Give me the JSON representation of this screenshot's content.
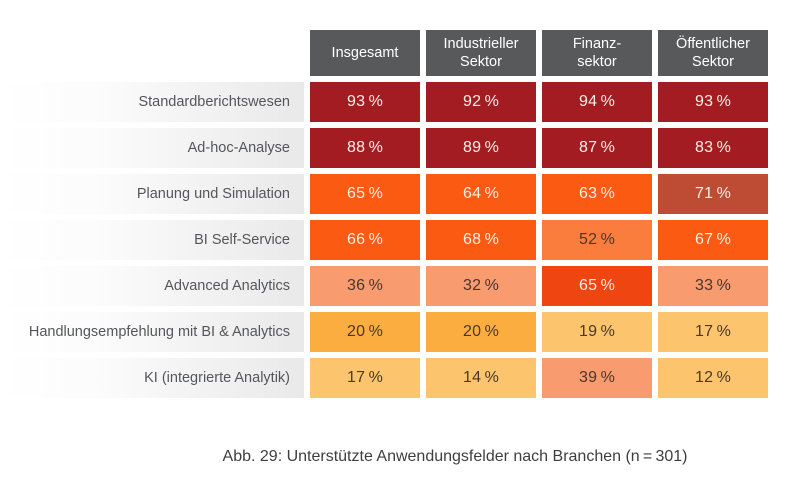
{
  "palette": {
    "header_bg": "#58595B",
    "header_fg": "#FFFFFF",
    "label_fg": "#55565A",
    "caption_fg": "#3E3E40",
    "light_text": "#FAF0E6",
    "dark_text": "#4A372B",
    "darkRed": "#A31C22",
    "brickRed": "#BE4B33",
    "orange": "#FA5A12",
    "deepOrange": "#EE4511",
    "lightOrange": "#FA7D3E",
    "salmon": "#F89B6F",
    "amber": "#FBAE3F",
    "lightAmber": "#FCC46C"
  },
  "table": {
    "columns": [
      {
        "label": "Insgesamt"
      },
      {
        "label": "Industrieller\nSektor"
      },
      {
        "label": "Finanz-\nsektor"
      },
      {
        "label": "Öffentlicher\nSektor"
      }
    ],
    "rows": [
      {
        "label": "Standardberichtswesen",
        "cells": [
          {
            "text": "93 %",
            "color": "darkRed",
            "text_color": "light"
          },
          {
            "text": "92 %",
            "color": "darkRed",
            "text_color": "light"
          },
          {
            "text": "94 %",
            "color": "darkRed",
            "text_color": "light"
          },
          {
            "text": "93 %",
            "color": "darkRed",
            "text_color": "light"
          }
        ]
      },
      {
        "label": "Ad-hoc-Analyse",
        "cells": [
          {
            "text": "88 %",
            "color": "darkRed",
            "text_color": "light"
          },
          {
            "text": "89 %",
            "color": "darkRed",
            "text_color": "light"
          },
          {
            "text": "87 %",
            "color": "darkRed",
            "text_color": "light"
          },
          {
            "text": "83 %",
            "color": "darkRed",
            "text_color": "light"
          }
        ]
      },
      {
        "label": "Planung und Simulation",
        "cells": [
          {
            "text": "65 %",
            "color": "orange",
            "text_color": "light"
          },
          {
            "text": "64 %",
            "color": "orange",
            "text_color": "light"
          },
          {
            "text": "63 %",
            "color": "orange",
            "text_color": "light"
          },
          {
            "text": "71 %",
            "color": "brickRed",
            "text_color": "light"
          }
        ]
      },
      {
        "label": "BI Self-Service",
        "cells": [
          {
            "text": "66 %",
            "color": "orange",
            "text_color": "light"
          },
          {
            "text": "68 %",
            "color": "orange",
            "text_color": "light"
          },
          {
            "text": "52 %",
            "color": "lightOrange",
            "text_color": "dark"
          },
          {
            "text": "67 %",
            "color": "orange",
            "text_color": "light"
          }
        ]
      },
      {
        "label": "Advanced Analytics",
        "cells": [
          {
            "text": "36 %",
            "color": "salmon",
            "text_color": "dark"
          },
          {
            "text": "32 %",
            "color": "salmon",
            "text_color": "dark"
          },
          {
            "text": "65 %",
            "color": "deepOrange",
            "text_color": "light"
          },
          {
            "text": "33 %",
            "color": "salmon",
            "text_color": "dark"
          }
        ]
      },
      {
        "label": "Handlungsempfehlung mit BI & Analytics",
        "cells": [
          {
            "text": "20 %",
            "color": "amber",
            "text_color": "dark"
          },
          {
            "text": "20 %",
            "color": "amber",
            "text_color": "dark"
          },
          {
            "text": "19 %",
            "color": "lightAmber",
            "text_color": "dark"
          },
          {
            "text": "17 %",
            "color": "lightAmber",
            "text_color": "dark"
          }
        ]
      },
      {
        "label": "KI (integrierte Analytik)",
        "cells": [
          {
            "text": "17 %",
            "color": "lightAmber",
            "text_color": "dark"
          },
          {
            "text": "14 %",
            "color": "lightAmber",
            "text_color": "dark"
          },
          {
            "text": "39 %",
            "color": "salmon",
            "text_color": "dark"
          },
          {
            "text": "12 %",
            "color": "lightAmber",
            "text_color": "dark"
          }
        ]
      }
    ]
  },
  "caption": "Abb. 29: Unterstützte Anwendungsfelder nach Branchen (n = 301)",
  "chart_data": {
    "type": "heatmap",
    "title": "Abb. 29: Unterstützte Anwendungsfelder nach Branchen (n=301)",
    "columns": [
      "Insgesamt",
      "Industrieller Sektor",
      "Finanzsektor",
      "Öffentlicher Sektor"
    ],
    "rows": [
      "Standardberichtswesen",
      "Ad-hoc-Analyse",
      "Planung und Simulation",
      "BI Self-Service",
      "Advanced Analytics",
      "Handlungsempfehlung mit BI & Analytics",
      "KI (integrierte Analytik)"
    ],
    "values_percent": [
      [
        93,
        92,
        94,
        93
      ],
      [
        88,
        89,
        87,
        83
      ],
      [
        65,
        64,
        63,
        71
      ],
      [
        66,
        68,
        52,
        67
      ],
      [
        36,
        32,
        65,
        33
      ],
      [
        20,
        20,
        19,
        17
      ],
      [
        17,
        14,
        39,
        12
      ]
    ],
    "unit": "%",
    "legend": "none",
    "color_scale": "red (high) to light amber (low)"
  }
}
